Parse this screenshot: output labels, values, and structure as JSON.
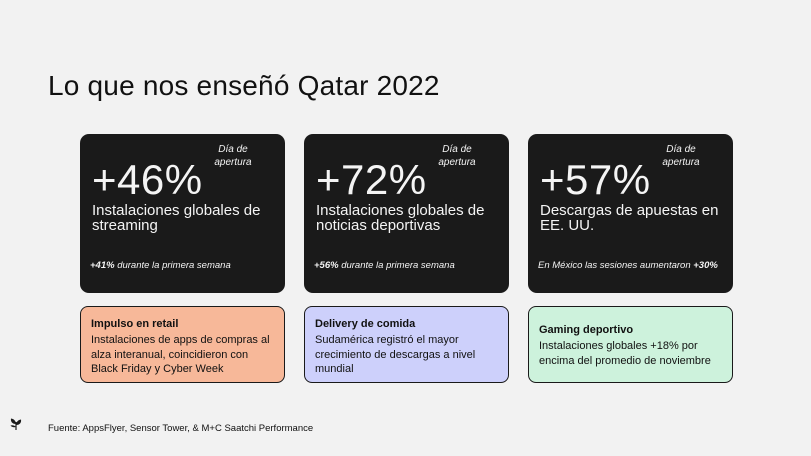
{
  "title": "Lo que nos enseñó Qatar 2022",
  "stats": [
    {
      "tag": "Día de apertura",
      "value": "+46%",
      "description": "Instalaciones globales de streaming",
      "note_strong_prefix": "+41%",
      "note_text": " durante la primera semana",
      "note_strong_suffix": ""
    },
    {
      "tag": "Día de apertura",
      "value": "+72%",
      "description": "Instalaciones globales de noticias deportivas",
      "note_strong_prefix": "+56%",
      "note_text": " durante la primera semana",
      "note_strong_suffix": ""
    },
    {
      "tag": "Día de apertura",
      "value": "+57%",
      "description": "Descargas de apuestas en EE. UU.",
      "note_strong_prefix": "",
      "note_text": "En México las sesiones aumentaron ",
      "note_strong_suffix": "+30%"
    }
  ],
  "insights": [
    {
      "title": "Impulso en retail",
      "body": "Instalaciones de apps de compras al alza interanual, coincidieron con Black Friday y Cyber Week",
      "color": "#f7b899"
    },
    {
      "title": "Delivery de comida",
      "body": "Sudamérica registró el mayor crecimiento de descargas a nivel mundial",
      "color": "#cdd0fb"
    },
    {
      "title": "Gaming deportivo",
      "body": "Instalaciones globales +18% por encima del promedio de noviembre",
      "color": "#cdf2dc"
    }
  ],
  "footer": {
    "source": "Fuente: AppsFlyer, Sensor Tower, & M+C Saatchi Performance",
    "logo_icon": "leaf-logo-icon"
  },
  "colors": {
    "background": "#f2f2f2",
    "card_dark": "#1a1a1a",
    "accent_peach": "#f7b899",
    "accent_lavender": "#cdd0fb",
    "accent_mint": "#cdf2dc"
  }
}
